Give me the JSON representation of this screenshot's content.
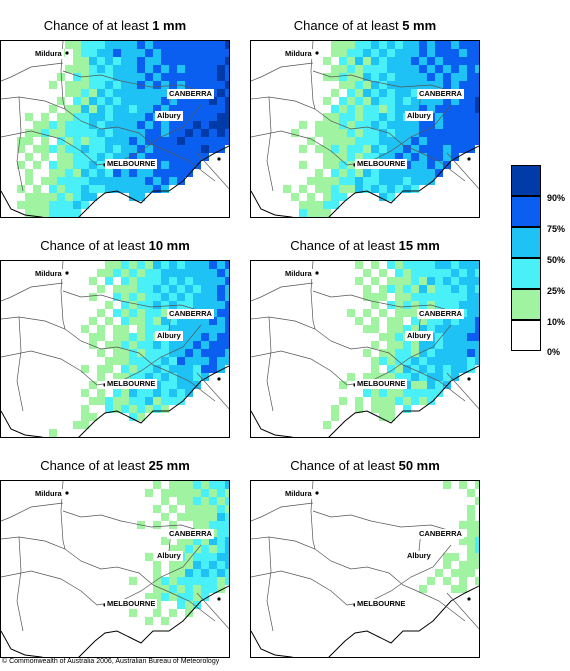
{
  "title_prefix": "Chance of at least",
  "panels": [
    {
      "amount": "1 mm",
      "level": 1
    },
    {
      "amount": "5 mm",
      "level": 2
    },
    {
      "amount": "10 mm",
      "level": 3
    },
    {
      "amount": "15 mm",
      "level": 4
    },
    {
      "amount": "25 mm",
      "level": 5
    },
    {
      "amount": "50 mm",
      "level": 6
    }
  ],
  "towns": {
    "mildura": "Mildura",
    "canberra": "CANBERRA",
    "albury": "Albury",
    "melbourne": "MELBOURNE"
  },
  "legend": {
    "items": [
      {
        "label": "90%",
        "color": "#003ba8"
      },
      {
        "label": "75%",
        "color": "#0a5ff0"
      },
      {
        "label": "50%",
        "color": "#1fc2f5"
      },
      {
        "label": "25%",
        "color": "#49f0f7"
      },
      {
        "label": "10%",
        "color": "#a0f3a0"
      },
      {
        "label": "0%",
        "color": "#ffffff"
      }
    ]
  },
  "copyright": "© Commonwealth of Australia 2006, Australian Bureau of Meteorology"
}
